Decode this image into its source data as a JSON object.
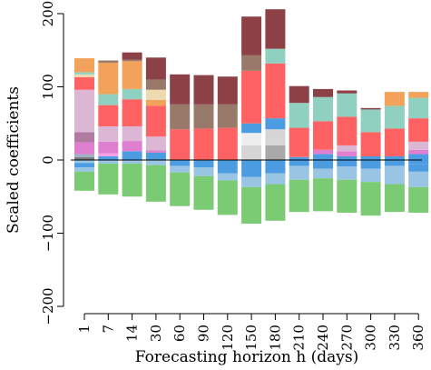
{
  "chart_data": {
    "type": "bar",
    "stacked": true,
    "title": "",
    "xlabel": "Forecasting horizon h (days)",
    "ylabel": "Scaled coefficients",
    "ylim": [
      -200,
      200
    ],
    "yticks": [
      -200,
      -100,
      0,
      100,
      200
    ],
    "grid": false,
    "legend": "none",
    "zero_line": true,
    "categories": [
      "1",
      "7",
      "14",
      "30",
      "60",
      "90",
      "120",
      "150",
      "180",
      "210",
      "240",
      "270",
      "300",
      "330",
      "360"
    ],
    "bars": [
      {
        "category": "1",
        "segments": [
          {
            "from": 0,
            "to": 4,
            "color": "#7a7a7a"
          },
          {
            "from": 4,
            "to": 8,
            "color": "#9fb2c4"
          },
          {
            "from": 8,
            "to": 24,
            "color": "#e07fd0"
          },
          {
            "from": 24,
            "to": 38,
            "color": "#b07aa1"
          },
          {
            "from": 38,
            "to": 96,
            "color": "#dbb7d5"
          },
          {
            "from": 96,
            "to": 113,
            "color": "#ff6262"
          },
          {
            "from": 113,
            "to": 117,
            "color": "#eddab0"
          },
          {
            "from": 117,
            "to": 120,
            "color": "#8fd0c0"
          },
          {
            "from": 120,
            "to": 139,
            "color": "#f2a25a"
          },
          {
            "from": -4,
            "to": 0,
            "color": "#99c4e4"
          },
          {
            "from": -10,
            "to": -4,
            "color": "#4b9ce0"
          },
          {
            "from": -16,
            "to": -10,
            "color": "#99c4e4"
          },
          {
            "from": -42,
            "to": -16,
            "color": "#7acb73"
          }
        ]
      },
      {
        "category": "7",
        "segments": [
          {
            "from": 0,
            "to": 5,
            "color": "#4b9ce0"
          },
          {
            "from": 5,
            "to": 9,
            "color": "#f6a0e5"
          },
          {
            "from": 9,
            "to": 25,
            "color": "#e07fd0"
          },
          {
            "from": 25,
            "to": 46,
            "color": "#dbb7d5"
          },
          {
            "from": 46,
            "to": 75,
            "color": "#ff6262"
          },
          {
            "from": 75,
            "to": 90,
            "color": "#8fd0c0"
          },
          {
            "from": 90,
            "to": 133,
            "color": "#f2a25a"
          },
          {
            "from": 133,
            "to": 136,
            "color": "#98796a"
          },
          {
            "from": -5,
            "to": 0,
            "color": "#99c4e4"
          },
          {
            "from": -47,
            "to": -5,
            "color": "#7acb73"
          }
        ]
      },
      {
        "category": "14",
        "segments": [
          {
            "from": 0,
            "to": 12,
            "color": "#4b9ce0"
          },
          {
            "from": 12,
            "to": 26,
            "color": "#e07fd0"
          },
          {
            "from": 26,
            "to": 46,
            "color": "#dbb7d5"
          },
          {
            "from": 46,
            "to": 83,
            "color": "#ff6262"
          },
          {
            "from": 83,
            "to": 97,
            "color": "#8fd0c0"
          },
          {
            "from": 97,
            "to": 135,
            "color": "#f2a25a"
          },
          {
            "from": 135,
            "to": 137,
            "color": "#98796a"
          },
          {
            "from": 137,
            "to": 147,
            "color": "#8b4146"
          },
          {
            "from": -5,
            "to": 0,
            "color": "#99c4e4"
          },
          {
            "from": -50,
            "to": -5,
            "color": "#7acb73"
          }
        ]
      },
      {
        "category": "30",
        "segments": [
          {
            "from": 0,
            "to": 10,
            "color": "#4b9ce0"
          },
          {
            "from": 10,
            "to": 13,
            "color": "#e07fd0"
          },
          {
            "from": 13,
            "to": 32,
            "color": "#dbb7d5"
          },
          {
            "from": 32,
            "to": 74,
            "color": "#ff6262"
          },
          {
            "from": 74,
            "to": 82,
            "color": "#f2a25a"
          },
          {
            "from": 82,
            "to": 96,
            "color": "#eddab0"
          },
          {
            "from": 96,
            "to": 110,
            "color": "#98796a"
          },
          {
            "from": 110,
            "to": 140,
            "color": "#8b4146"
          },
          {
            "from": -7,
            "to": 0,
            "color": "#99c4e4"
          },
          {
            "from": -57,
            "to": -7,
            "color": "#7acb73"
          }
        ]
      },
      {
        "category": "60",
        "segments": [
          {
            "from": 0,
            "to": 42,
            "color": "#ff6262"
          },
          {
            "from": 42,
            "to": 76,
            "color": "#98796a"
          },
          {
            "from": 76,
            "to": 117,
            "color": "#8b4146"
          },
          {
            "from": -8,
            "to": 0,
            "color": "#4b9ce0"
          },
          {
            "from": -17,
            "to": -8,
            "color": "#99c4e4"
          },
          {
            "from": -63,
            "to": -17,
            "color": "#7acb73"
          }
        ]
      },
      {
        "category": "90",
        "segments": [
          {
            "from": 0,
            "to": 43,
            "color": "#ff6262"
          },
          {
            "from": 43,
            "to": 76,
            "color": "#98796a"
          },
          {
            "from": 76,
            "to": 116,
            "color": "#8b4146"
          },
          {
            "from": -10,
            "to": 0,
            "color": "#4b9ce0"
          },
          {
            "from": -22,
            "to": -10,
            "color": "#99c4e4"
          },
          {
            "from": -68,
            "to": -22,
            "color": "#7acb73"
          }
        ]
      },
      {
        "category": "120",
        "segments": [
          {
            "from": 0,
            "to": 44,
            "color": "#ff6262"
          },
          {
            "from": 44,
            "to": 76,
            "color": "#98796a"
          },
          {
            "from": 76,
            "to": 114,
            "color": "#8b4146"
          },
          {
            "from": -18,
            "to": 0,
            "color": "#4b9ce0"
          },
          {
            "from": -28,
            "to": -18,
            "color": "#99c4e4"
          },
          {
            "from": -75,
            "to": -28,
            "color": "#7acb73"
          }
        ]
      },
      {
        "category": "150",
        "segments": [
          {
            "from": 0,
            "to": 20,
            "color": "#d6d6d6"
          },
          {
            "from": 20,
            "to": 37,
            "color": "#eeeeee"
          },
          {
            "from": 37,
            "to": 50,
            "color": "#4b9ce0"
          },
          {
            "from": 50,
            "to": 122,
            "color": "#ff6262"
          },
          {
            "from": 122,
            "to": 143,
            "color": "#98796a"
          },
          {
            "from": 143,
            "to": 196,
            "color": "#8b4146"
          },
          {
            "from": -23,
            "to": 0,
            "color": "#4b9ce0"
          },
          {
            "from": -37,
            "to": -23,
            "color": "#99c4e4"
          },
          {
            "from": -87,
            "to": -37,
            "color": "#7acb73"
          }
        ]
      },
      {
        "category": "180",
        "segments": [
          {
            "from": 0,
            "to": 20,
            "color": "#a9a9a9"
          },
          {
            "from": 20,
            "to": 42,
            "color": "#d6d6d6"
          },
          {
            "from": 42,
            "to": 57,
            "color": "#4b9ce0"
          },
          {
            "from": 57,
            "to": 132,
            "color": "#ff6262"
          },
          {
            "from": 132,
            "to": 152,
            "color": "#8fd0c0"
          },
          {
            "from": 152,
            "to": 206,
            "color": "#8b4146"
          },
          {
            "from": -18,
            "to": 0,
            "color": "#4b9ce0"
          },
          {
            "from": -33,
            "to": -18,
            "color": "#99c4e4"
          },
          {
            "from": -83,
            "to": -33,
            "color": "#7acb73"
          }
        ]
      },
      {
        "category": "210",
        "segments": [
          {
            "from": 0,
            "to": 4,
            "color": "#4b9ce0"
          },
          {
            "from": 4,
            "to": 44,
            "color": "#ff6262"
          },
          {
            "from": 44,
            "to": 78,
            "color": "#8fd0c0"
          },
          {
            "from": 78,
            "to": 101,
            "color": "#8b4146"
          },
          {
            "from": -8,
            "to": 0,
            "color": "#4b9ce0"
          },
          {
            "from": -27,
            "to": -8,
            "color": "#99c4e4"
          },
          {
            "from": -71,
            "to": -27,
            "color": "#7acb73"
          }
        ]
      },
      {
        "category": "240",
        "segments": [
          {
            "from": 0,
            "to": 8,
            "color": "#4b9ce0"
          },
          {
            "from": 8,
            "to": 14,
            "color": "#e07fd0"
          },
          {
            "from": 14,
            "to": 53,
            "color": "#ff6262"
          },
          {
            "from": 53,
            "to": 86,
            "color": "#8fd0c0"
          },
          {
            "from": 86,
            "to": 97,
            "color": "#8b4146"
          },
          {
            "from": -12,
            "to": 0,
            "color": "#4b9ce0"
          },
          {
            "from": -25,
            "to": -12,
            "color": "#99c4e4"
          },
          {
            "from": -70,
            "to": -25,
            "color": "#7acb73"
          }
        ]
      },
      {
        "category": "270",
        "segments": [
          {
            "from": 0,
            "to": 5,
            "color": "#4b9ce0"
          },
          {
            "from": 5,
            "to": 12,
            "color": "#e07fd0"
          },
          {
            "from": 12,
            "to": 20,
            "color": "#dbb7d5"
          },
          {
            "from": 20,
            "to": 59,
            "color": "#ff6262"
          },
          {
            "from": 59,
            "to": 91,
            "color": "#8fd0c0"
          },
          {
            "from": 91,
            "to": 95,
            "color": "#8b4146"
          },
          {
            "from": -9,
            "to": 0,
            "color": "#4b9ce0"
          },
          {
            "from": -27,
            "to": -9,
            "color": "#99c4e4"
          },
          {
            "from": -72,
            "to": -27,
            "color": "#7acb73"
          }
        ]
      },
      {
        "category": "300",
        "segments": [
          {
            "from": 0,
            "to": 5,
            "color": "#4b9ce0"
          },
          {
            "from": 5,
            "to": 38,
            "color": "#ff6262"
          },
          {
            "from": 38,
            "to": 69,
            "color": "#8fd0c0"
          },
          {
            "from": 69,
            "to": 71,
            "color": "#8b4146"
          },
          {
            "from": -12,
            "to": 0,
            "color": "#4b9ce0"
          },
          {
            "from": -30,
            "to": -12,
            "color": "#99c4e4"
          },
          {
            "from": -76,
            "to": -30,
            "color": "#7acb73"
          }
        ]
      },
      {
        "category": "330",
        "segments": [
          {
            "from": 0,
            "to": 5,
            "color": "#4b9ce0"
          },
          {
            "from": 5,
            "to": 43,
            "color": "#ff6262"
          },
          {
            "from": 43,
            "to": 74,
            "color": "#8fd0c0"
          },
          {
            "from": 74,
            "to": 93,
            "color": "#f2a25a"
          },
          {
            "from": -8,
            "to": 0,
            "color": "#4b9ce0"
          },
          {
            "from": -33,
            "to": -8,
            "color": "#99c4e4"
          },
          {
            "from": -71,
            "to": -33,
            "color": "#7acb73"
          }
        ]
      },
      {
        "category": "360",
        "segments": [
          {
            "from": 0,
            "to": 8,
            "color": "#4b9ce0"
          },
          {
            "from": 8,
            "to": 14,
            "color": "#e07fd0"
          },
          {
            "from": 14,
            "to": 25,
            "color": "#dbb7d5"
          },
          {
            "from": 25,
            "to": 57,
            "color": "#ff6262"
          },
          {
            "from": 57,
            "to": 85,
            "color": "#8fd0c0"
          },
          {
            "from": 85,
            "to": 93,
            "color": "#f2a25a"
          },
          {
            "from": -6,
            "to": 0,
            "color": "#4b9ce0"
          },
          {
            "from": -16,
            "to": -6,
            "color": "#4b9ce0"
          },
          {
            "from": -37,
            "to": -16,
            "color": "#99c4e4"
          },
          {
            "from": -72,
            "to": -37,
            "color": "#7acb73"
          }
        ]
      }
    ]
  }
}
